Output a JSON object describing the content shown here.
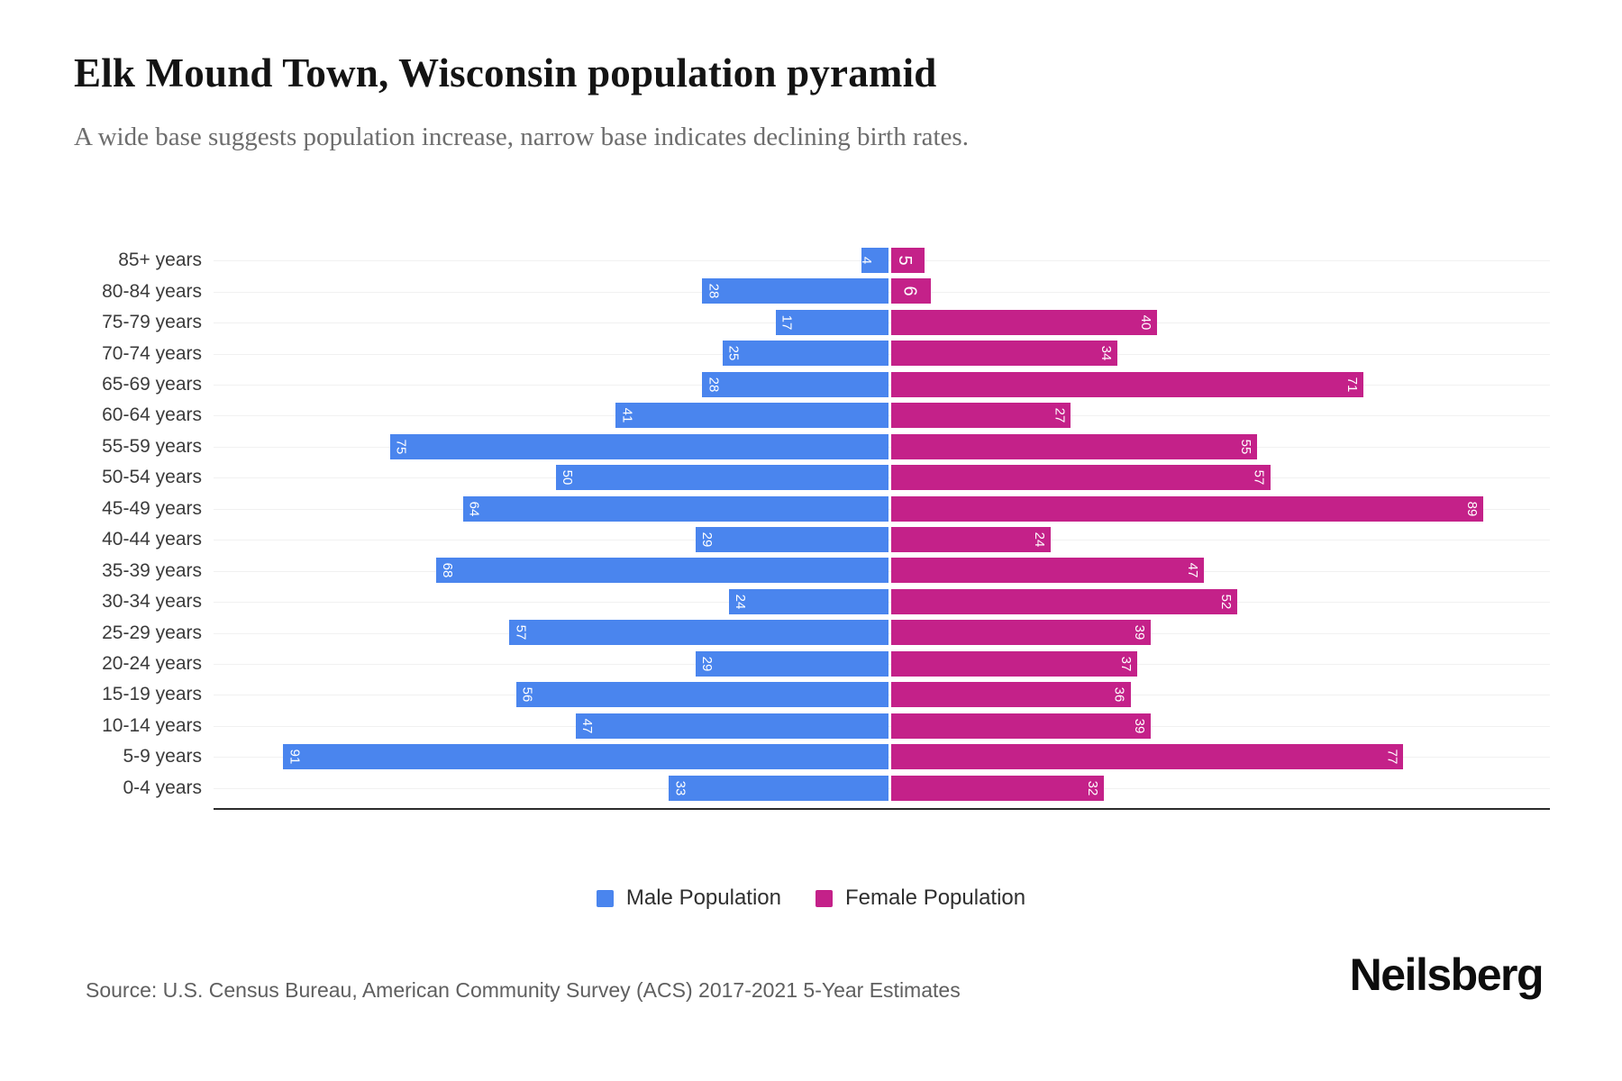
{
  "title": "Elk Mound Town, Wisconsin population pyramid",
  "subtitle": "A wide base suggests population increase, narrow base indicates declining birth rates.",
  "legend": {
    "male": "Male Population",
    "female": "Female Population"
  },
  "source": "Source: U.S. Census Bureau, American Community Survey (ACS) 2017-2021 5-Year Estimates",
  "brand": "Neilsberg",
  "colors": {
    "male": "#4A85EE",
    "female": "#C42189",
    "gridline": "#f1f1f1",
    "axis": "#2b2b2b"
  },
  "chart_data": {
    "type": "bar",
    "variant": "population-pyramid",
    "orientation": "horizontal",
    "categories": [
      "85+ years",
      "80-84 years",
      "75-79 years",
      "70-74 years",
      "65-69 years",
      "60-64 years",
      "55-59 years",
      "50-54 years",
      "45-49 years",
      "40-44 years",
      "35-39 years",
      "30-34 years",
      "25-29 years",
      "20-24 years",
      "15-19 years",
      "10-14 years",
      "5-9 years",
      "0-4 years"
    ],
    "series": [
      {
        "name": "Male Population",
        "side": "left",
        "color": "#4A85EE",
        "values": [
          4,
          28,
          17,
          25,
          28,
          41,
          75,
          50,
          64,
          29,
          68,
          24,
          57,
          29,
          56,
          47,
          91,
          33
        ]
      },
      {
        "name": "Female Population",
        "side": "right",
        "color": "#C42189",
        "values": [
          5,
          6,
          40,
          34,
          71,
          27,
          55,
          57,
          89,
          24,
          47,
          52,
          39,
          37,
          36,
          39,
          77,
          32
        ]
      }
    ],
    "value_labels": "on-bar, white, rotated 90deg",
    "xlim_each_side": [
      0,
      100
    ],
    "x_tick_labels_visible": false,
    "grid": true,
    "legend_position": "bottom"
  }
}
